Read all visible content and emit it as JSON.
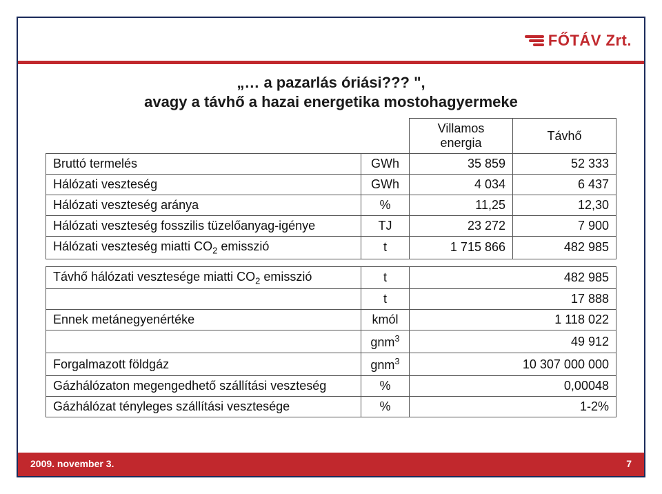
{
  "logo_text": "FŐTÁV Zrt.",
  "title": {
    "line1": "„… a pazarlás óriási??? \",",
    "line2": "avagy a távhő a hazai energetika mostohagyermeke"
  },
  "table1": {
    "headers": {
      "label": "",
      "unit": "",
      "col1": "Villamos energia",
      "col2": "Távhő"
    },
    "rows": [
      {
        "label": "Bruttó termelés",
        "unit": "GWh",
        "v1": "35 859",
        "v2": "52 333"
      },
      {
        "label": "Hálózati veszteség",
        "unit": "GWh",
        "v1": "4 034",
        "v2": "6 437"
      },
      {
        "label": "Hálózati veszteség aránya",
        "unit": "%",
        "v1": "11,25",
        "v2": "12,30"
      },
      {
        "label": "Hálózati veszteség fosszilis tüzelőanyag-igénye",
        "unit": "TJ",
        "v1": "23 272",
        "v2": "7 900"
      },
      {
        "label_html": "Hálózati veszteség miatti CO<sub>2</sub> emisszió",
        "unit": "t",
        "v1": "1 715 866",
        "v2": "482 985"
      }
    ]
  },
  "table2": {
    "rows": [
      {
        "label_html": "Távhő hálózati vesztesége miatti CO<sub>2</sub> emisszió",
        "unit": "t",
        "v1": "482 985"
      },
      {
        "label": "",
        "unit": "t",
        "v1": "17 888"
      },
      {
        "label": "Ennek metánegyenértéke",
        "unit": "kmól",
        "v1": "1 118 022"
      },
      {
        "label": "",
        "unit_html": "gnm<sup>3</sup>",
        "v1": "49 912"
      },
      {
        "label": "Forgalmazott földgáz",
        "unit_html": "gnm<sup>3</sup>",
        "v1": "10 307 000 000"
      },
      {
        "label": "Gázhálózaton megengedhető szállítási veszteség",
        "unit": "%",
        "v1": "0,00048"
      },
      {
        "label": "Gázhálózat tényleges szállítási vesztesége",
        "unit": "%",
        "v1": "1-2%"
      }
    ]
  },
  "footer": {
    "date": "2009. november 3.",
    "page": "7"
  },
  "colors": {
    "frame": "#1a2a5a",
    "accent": "#c1282d",
    "text": "#111111",
    "border": "#555555",
    "background": "#ffffff"
  }
}
